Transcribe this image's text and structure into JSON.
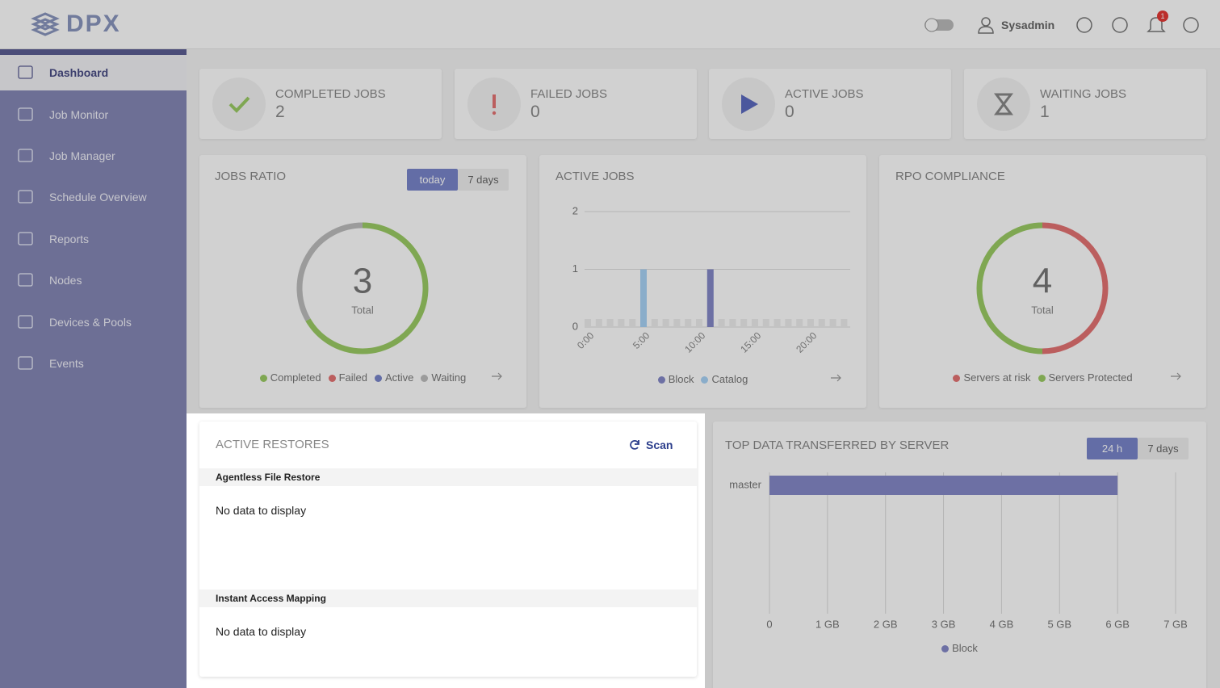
{
  "header": {
    "logo": "DPX",
    "user": "Sysadmin",
    "notifications": 1
  },
  "sidebar": {
    "items": [
      "Dashboard",
      "Job Monitor",
      "Job Manager",
      "Schedule Overview",
      "Reports",
      "Nodes",
      "Devices & Pools",
      "Events"
    ]
  },
  "stats": [
    {
      "label": "COMPLETED JOBS",
      "value": 2
    },
    {
      "label": "FAILED JOBS",
      "value": 0
    },
    {
      "label": "ACTIVE JOBS",
      "value": 0
    },
    {
      "label": "WAITING JOBS",
      "value": 1
    }
  ],
  "jobs_ratio": {
    "title": "JOBS RATIO",
    "range_buttons": [
      "today",
      "7 days"
    ],
    "type": "donut",
    "total": 3,
    "total_label": "Total",
    "series": [
      {
        "name": "Completed",
        "color": "#9ccc65",
        "value": 2
      },
      {
        "name": "Failed",
        "color": "#e57373",
        "value": 0
      },
      {
        "name": "Active",
        "color": "#7986cb",
        "value": 0
      },
      {
        "name": "Waiting",
        "color": "#bdbdbd",
        "value": 1
      }
    ]
  },
  "active_jobs": {
    "title": "ACTIVE JOBS",
    "type": "bar",
    "categories": [
      "0:00",
      null,
      null,
      null,
      null,
      "5:00",
      null,
      null,
      null,
      null,
      "10:00",
      null,
      null,
      null,
      null,
      "15:00",
      null,
      null,
      null,
      null,
      "20:00",
      null,
      null,
      null
    ],
    "series": [
      {
        "name": "Block",
        "color": "#8589c9",
        "values": [
          0,
          0,
          0,
          0,
          0,
          0,
          0,
          0,
          0,
          0,
          0,
          1,
          0,
          0,
          0,
          0,
          0,
          0,
          0,
          0,
          0,
          0,
          0,
          0
        ]
      },
      {
        "name": "Catalog",
        "color": "#a9d3f7",
        "values": [
          0,
          0,
          0,
          0,
          0,
          1,
          0,
          0,
          0,
          0,
          0,
          0,
          0,
          0,
          0,
          0,
          0,
          0,
          0,
          0,
          0,
          0,
          0,
          0
        ]
      }
    ],
    "ylim": [
      0,
      2
    ],
    "yticks": [
      0,
      1,
      2
    ],
    "grid": true
  },
  "rpo_compliance": {
    "title": "RPO COMPLIANCE",
    "type": "donut",
    "total": 4,
    "total_label": "Total",
    "series": [
      {
        "name": "Servers at risk",
        "color": "#e57373",
        "value": 2
      },
      {
        "name": "Servers Protected",
        "color": "#9ccc65",
        "value": 2
      }
    ]
  },
  "active_restores": {
    "title": "ACTIVE RESTORES",
    "scan": "Scan",
    "sections": [
      {
        "title": "Agentless File Restore",
        "empty": "No data to display"
      },
      {
        "title": "Instant Access Mapping",
        "empty": "No data to display"
      }
    ]
  },
  "top_data": {
    "title": "TOP DATA TRANSFERRED BY SERVER",
    "range_buttons": [
      "24 h",
      "7 days"
    ],
    "type": "hbar",
    "categories": [
      "master"
    ],
    "series": [
      {
        "name": "Block",
        "color": "#8589c9",
        "values": [
          6
        ]
      }
    ],
    "xlim": [
      0,
      7
    ],
    "xticks": [
      0,
      {
        "value": 1,
        "label": "1 GB"
      },
      {
        "value": 2,
        "label": "2 GB"
      },
      {
        "value": 3,
        "label": "3 GB"
      },
      {
        "value": 4,
        "label": "4 GB"
      },
      {
        "value": 5,
        "label": "5 GB"
      },
      {
        "value": 6,
        "label": "6 GB"
      },
      {
        "value": 7,
        "label": "7 GB"
      }
    ],
    "grid": true
  }
}
